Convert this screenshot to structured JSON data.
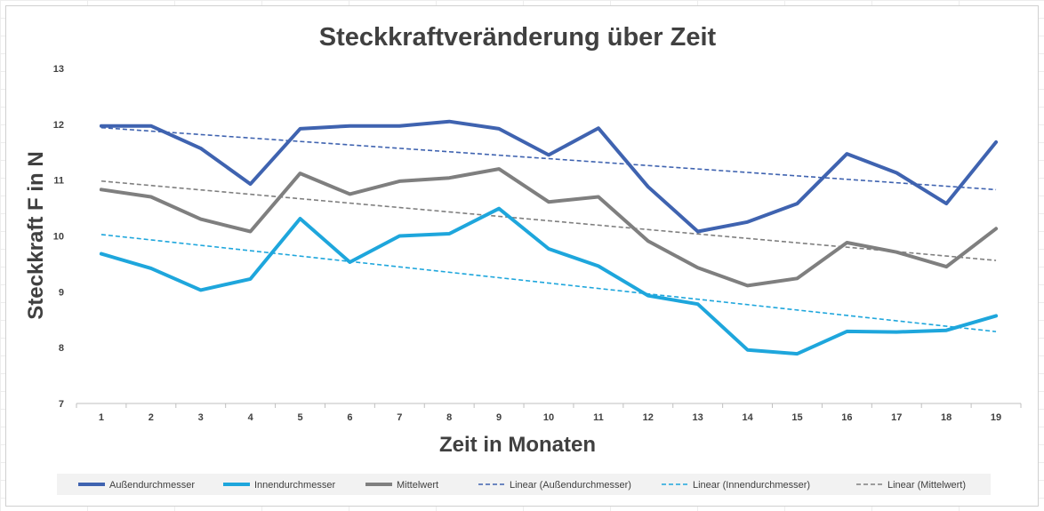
{
  "chart_data": {
    "type": "line",
    "title": "Steckkraftveränderung über Zeit",
    "xlabel": "Zeit in Monaten",
    "ylabel": "Steckkraft F in N",
    "x": [
      1,
      2,
      3,
      4,
      5,
      6,
      7,
      8,
      9,
      10,
      11,
      12,
      13,
      14,
      15,
      16,
      17,
      18,
      19
    ],
    "ylim": [
      7,
      13
    ],
    "yticks": [
      7,
      8,
      9,
      10,
      11,
      12,
      13
    ],
    "grid": false,
    "legend_position": "bottom",
    "series": [
      {
        "name": "Außendurchmesser",
        "color": "#3f63b0",
        "style": "solid",
        "values": [
          11.97,
          11.97,
          11.57,
          10.93,
          11.92,
          11.97,
          11.97,
          12.05,
          11.92,
          11.45,
          11.93,
          10.88,
          10.08,
          10.25,
          10.58,
          11.47,
          11.13,
          10.58,
          11.68
        ]
      },
      {
        "name": "Innendurchmesser",
        "color": "#1ea6dc",
        "style": "solid",
        "values": [
          9.68,
          9.42,
          9.03,
          9.23,
          10.31,
          9.53,
          10.0,
          10.04,
          10.49,
          9.77,
          9.46,
          8.93,
          8.78,
          7.96,
          7.89,
          8.29,
          8.28,
          8.31,
          8.57
        ]
      },
      {
        "name": "Mittelwert",
        "color": "#7f7f7f",
        "style": "solid",
        "values": [
          10.83,
          10.7,
          10.3,
          10.08,
          11.12,
          10.75,
          10.98,
          11.04,
          11.2,
          10.61,
          10.7,
          9.91,
          9.43,
          9.11,
          9.24,
          9.88,
          9.71,
          9.45,
          10.13
        ]
      },
      {
        "name": "Linear (Außendurchmesser)",
        "color": "#3f63b0",
        "style": "dashed",
        "trend_of": 0
      },
      {
        "name": "Linear (Innendurchmesser)",
        "color": "#1ea6dc",
        "style": "dashed",
        "trend_of": 1
      },
      {
        "name": "Linear (Mittelwert)",
        "color": "#7f7f7f",
        "style": "dashed",
        "trend_of": 2
      }
    ]
  }
}
